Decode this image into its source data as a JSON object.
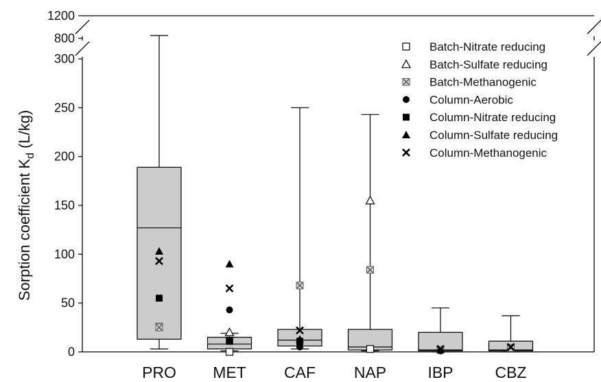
{
  "chart_data": {
    "type": "box",
    "ylabel": "Sorption coefficient K",
    "ylabel_sub": "d",
    "ylabel_unit": "(L/kg)",
    "categories": [
      "PRO",
      "MET",
      "CAF",
      "NAP",
      "IBP",
      "CBZ"
    ],
    "y_ticks": [
      0,
      50,
      100,
      150,
      200,
      250,
      300,
      800,
      1200
    ],
    "y_tick_labels": [
      "0",
      "50",
      "100",
      "150",
      "200",
      "250",
      "300",
      "800",
      "1200"
    ],
    "ylim": [
      0,
      1200
    ],
    "axis_breaks": [
      [
        300,
        800
      ],
      [
        800,
        1200
      ]
    ],
    "box_fill": "#cccccc",
    "grid": false,
    "legend_position": "top-right",
    "boxes": [
      {
        "category": "PRO",
        "min": 3,
        "q1": 13,
        "median": 127,
        "q3": 189,
        "max": 850
      },
      {
        "category": "MET",
        "min": 1,
        "q1": 3,
        "median": 8,
        "q3": 15,
        "max": 19
      },
      {
        "category": "CAF",
        "min": 3,
        "q1": 6,
        "median": 12,
        "q3": 23,
        "max": 250
      },
      {
        "category": "NAP",
        "min": 1,
        "q1": 2,
        "median": 5,
        "q3": 23,
        "max": 243
      },
      {
        "category": "IBP",
        "min": 0,
        "q1": 1,
        "median": 2,
        "q3": 20,
        "max": 45
      },
      {
        "category": "CBZ",
        "min": 0,
        "q1": 1,
        "median": 2,
        "q3": 11,
        "max": 37
      }
    ],
    "series": [
      {
        "name": "Batch-Nitrate reducing",
        "marker": "open-square",
        "points": [
          {
            "x": "MET",
            "y": 0
          },
          {
            "x": "NAP",
            "y": 3
          }
        ]
      },
      {
        "name": "Batch-Sulfate reducing",
        "marker": "open-triangle",
        "points": [
          {
            "x": "MET",
            "y": 20
          },
          {
            "x": "NAP",
            "y": 155
          }
        ]
      },
      {
        "name": "Batch-Methanogenic",
        "marker": "boxed-x",
        "points": [
          {
            "x": "PRO",
            "y": 26
          },
          {
            "x": "PRO",
            "y": 25
          },
          {
            "x": "MET",
            "y": 11
          },
          {
            "x": "CAF",
            "y": 68
          },
          {
            "x": "NAP",
            "y": 84
          },
          {
            "x": "IBP",
            "y": 2
          },
          {
            "x": "CBZ",
            "y": 4
          }
        ]
      },
      {
        "name": "Column-Aerobic",
        "marker": "filled-circle",
        "points": [
          {
            "x": "MET",
            "y": 43
          },
          {
            "x": "CAF",
            "y": 5
          },
          {
            "x": "CAF",
            "y": 8
          },
          {
            "x": "IBP",
            "y": 1
          }
        ]
      },
      {
        "name": "Column-Nitrate reducing",
        "marker": "filled-square",
        "points": [
          {
            "x": "PRO",
            "y": 55
          },
          {
            "x": "MET",
            "y": 11
          },
          {
            "x": "CAF",
            "y": 11
          }
        ]
      },
      {
        "name": "Column-Sulfate reducing",
        "marker": "filled-triangle",
        "points": [
          {
            "x": "PRO",
            "y": 103
          },
          {
            "x": "MET",
            "y": 90
          },
          {
            "x": "CAF",
            "y": 13
          }
        ]
      },
      {
        "name": "Column-Methanogenic",
        "marker": "x",
        "points": [
          {
            "x": "PRO",
            "y": 93
          },
          {
            "x": "MET",
            "y": 65
          },
          {
            "x": "CAF",
            "y": 22
          },
          {
            "x": "IBP",
            "y": 3
          },
          {
            "x": "CBZ",
            "y": 5
          }
        ]
      }
    ]
  }
}
